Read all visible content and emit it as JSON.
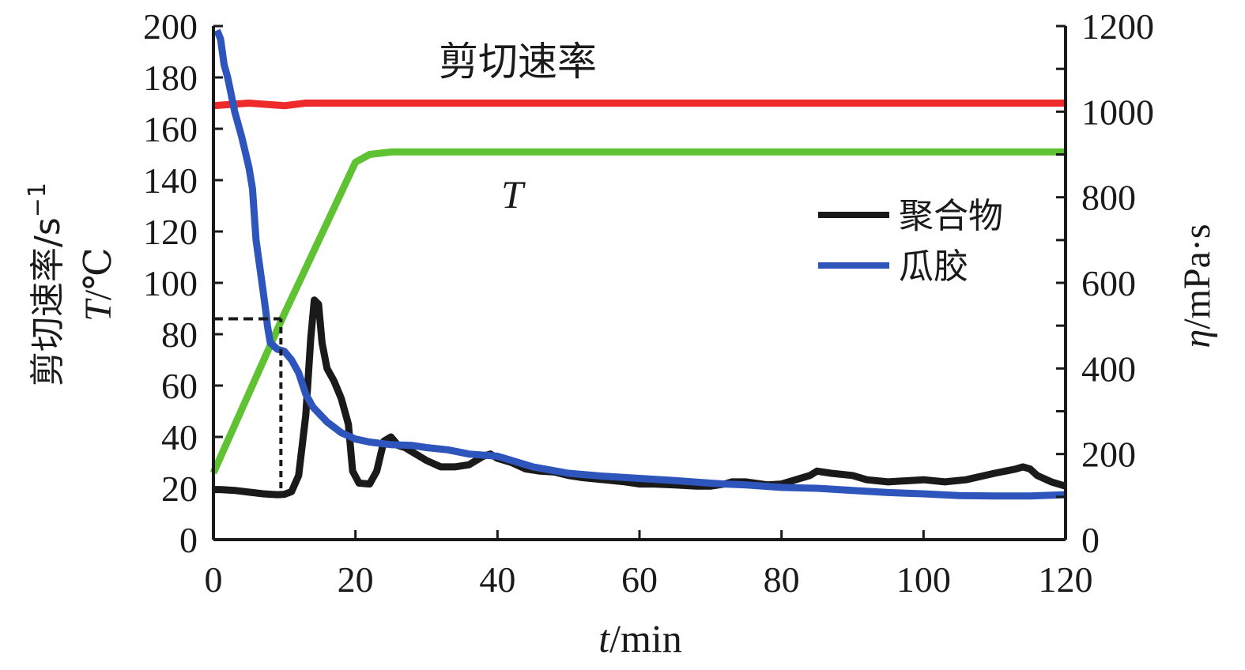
{
  "chart_data": {
    "type": "line",
    "x": {
      "label_var": "t",
      "label_unit": "/min",
      "lim": [
        0,
        120
      ],
      "ticks": [
        0,
        20,
        40,
        60,
        80,
        100,
        120
      ],
      "tick_labels": [
        "0",
        "20",
        "40",
        "60",
        "80",
        "100",
        "120"
      ]
    },
    "y_left": {
      "label_line1": "剪切速率/s",
      "label_line1_sup": "−1",
      "label_line2_var": "T",
      "label_line2_unit": "/℃",
      "lim": [
        0,
        200
      ],
      "ticks": [
        0,
        20,
        40,
        60,
        80,
        100,
        120,
        140,
        160,
        180,
        200
      ],
      "tick_labels": [
        "0",
        "20",
        "40",
        "60",
        "80",
        "100",
        "120",
        "140",
        "160",
        "180",
        "200"
      ]
    },
    "y_right": {
      "label_var": "η",
      "label_unit": "/mPa·s",
      "lim": [
        0,
        1200
      ],
      "ticks": [
        0,
        200,
        400,
        600,
        800,
        1000,
        1200
      ],
      "tick_labels": [
        "0",
        "200",
        "400",
        "600",
        "800",
        "1000",
        "1200"
      ]
    },
    "annotations": {
      "shear_rate": "剪切速率",
      "temperature": "T"
    },
    "legend": {
      "placement": "right-center",
      "entries": [
        "聚合物",
        "瓜胶"
      ]
    },
    "series": [
      {
        "name": "剪切速率",
        "axis": "left",
        "color": "#ee2a2a",
        "points": [
          [
            0,
            169
          ],
          [
            5,
            170
          ],
          [
            10,
            169
          ],
          [
            13,
            170
          ],
          [
            20,
            170
          ],
          [
            40,
            170
          ],
          [
            60,
            170
          ],
          [
            80,
            170
          ],
          [
            100,
            170
          ],
          [
            120,
            170
          ]
        ]
      },
      {
        "name": "T",
        "axis": "left",
        "color": "#5ec232",
        "points": [
          [
            0,
            26
          ],
          [
            10,
            88
          ],
          [
            20,
            147
          ],
          [
            22,
            150
          ],
          [
            25,
            151
          ],
          [
            40,
            151
          ],
          [
            60,
            151
          ],
          [
            80,
            151
          ],
          [
            100,
            151
          ],
          [
            120,
            151
          ]
        ]
      },
      {
        "name": "聚合物",
        "axis": "right",
        "color": "#1a1a1a",
        "points": [
          [
            0,
            117
          ],
          [
            1,
            117
          ],
          [
            3,
            115
          ],
          [
            5,
            111
          ],
          [
            7,
            107
          ],
          [
            9,
            105
          ],
          [
            10,
            106
          ],
          [
            11,
            112
          ],
          [
            12,
            150
          ],
          [
            13,
            290
          ],
          [
            13.7,
            470
          ],
          [
            14.2,
            560
          ],
          [
            14.8,
            550
          ],
          [
            15.3,
            460
          ],
          [
            16,
            400
          ],
          [
            17,
            370
          ],
          [
            18,
            330
          ],
          [
            19,
            270
          ],
          [
            19.6,
            160
          ],
          [
            20.5,
            132
          ],
          [
            22,
            130
          ],
          [
            23,
            160
          ],
          [
            24,
            230
          ],
          [
            25,
            240
          ],
          [
            26,
            220
          ],
          [
            27,
            215
          ],
          [
            28,
            205
          ],
          [
            29,
            195
          ],
          [
            30,
            185
          ],
          [
            32,
            170
          ],
          [
            34,
            170
          ],
          [
            36,
            175
          ],
          [
            38,
            195
          ],
          [
            39,
            200
          ],
          [
            40,
            190
          ],
          [
            42,
            180
          ],
          [
            44,
            165
          ],
          [
            46,
            160
          ],
          [
            48,
            158
          ],
          [
            50,
            150
          ],
          [
            52,
            145
          ],
          [
            55,
            140
          ],
          [
            58,
            135
          ],
          [
            60,
            130
          ],
          [
            62,
            130
          ],
          [
            65,
            128
          ],
          [
            68,
            125
          ],
          [
            70,
            125
          ],
          [
            72,
            130
          ],
          [
            73,
            135
          ],
          [
            75,
            135
          ],
          [
            78,
            128
          ],
          [
            80,
            130
          ],
          [
            82,
            140
          ],
          [
            84,
            150
          ],
          [
            85,
            160
          ],
          [
            87,
            155
          ],
          [
            90,
            150
          ],
          [
            92,
            140
          ],
          [
            95,
            135
          ],
          [
            100,
            140
          ],
          [
            103,
            135
          ],
          [
            106,
            140
          ],
          [
            110,
            155
          ],
          [
            113,
            165
          ],
          [
            114,
            170
          ],
          [
            115,
            165
          ],
          [
            116,
            150
          ],
          [
            118,
            135
          ],
          [
            120,
            125
          ]
        ]
      },
      {
        "name": "瓜胶",
        "axis": "right",
        "color": "#2d55bb",
        "points": [
          [
            0.5,
            1190
          ],
          [
            1,
            1170
          ],
          [
            1.5,
            1110
          ],
          [
            2,
            1080
          ],
          [
            2.5,
            1040
          ],
          [
            3,
            1000
          ],
          [
            4,
            940
          ],
          [
            5,
            870
          ],
          [
            5.5,
            820
          ],
          [
            6,
            700
          ],
          [
            7,
            580
          ],
          [
            7.4,
            530
          ],
          [
            7.6,
            500
          ],
          [
            8,
            460
          ],
          [
            9,
            445
          ],
          [
            10,
            440
          ],
          [
            11,
            420
          ],
          [
            12,
            390
          ],
          [
            13,
            340
          ],
          [
            14,
            310
          ],
          [
            16,
            275
          ],
          [
            18,
            250
          ],
          [
            20,
            235
          ],
          [
            22,
            228
          ],
          [
            25,
            222
          ],
          [
            28,
            220
          ],
          [
            30,
            215
          ],
          [
            33,
            210
          ],
          [
            36,
            200
          ],
          [
            40,
            195
          ],
          [
            45,
            170
          ],
          [
            50,
            155
          ],
          [
            55,
            148
          ],
          [
            60,
            143
          ],
          [
            65,
            138
          ],
          [
            70,
            132
          ],
          [
            72,
            130
          ],
          [
            75,
            128
          ],
          [
            80,
            122
          ],
          [
            85,
            120
          ],
          [
            90,
            115
          ],
          [
            95,
            110
          ],
          [
            100,
            107
          ],
          [
            105,
            103
          ],
          [
            110,
            102
          ],
          [
            115,
            102
          ],
          [
            120,
            105
          ]
        ]
      }
    ],
    "reference_lines": {
      "style": "dashed",
      "color": "#1a1a1a",
      "horizontal": {
        "x": [
          0,
          9.5
        ],
        "y": 86
      },
      "vertical": {
        "x": 9.5,
        "y": [
          20,
          86
        ]
      }
    }
  }
}
